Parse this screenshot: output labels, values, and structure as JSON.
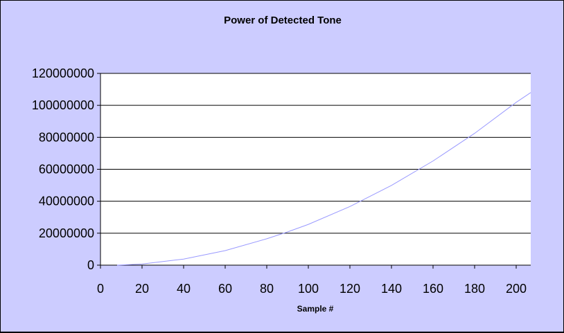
{
  "chart_data": {
    "type": "line",
    "title": "Power of Detected Tone",
    "xlabel": "Sample #",
    "ylabel": "",
    "xlim": [
      0,
      207
    ],
    "ylim": [
      0,
      120000000
    ],
    "x_ticks": [
      0,
      20,
      40,
      60,
      80,
      100,
      120,
      140,
      160,
      180,
      200
    ],
    "y_ticks": [
      0,
      20000000,
      40000000,
      60000000,
      80000000,
      100000000,
      120000000
    ],
    "grid": {
      "horizontal": true,
      "vertical": false
    },
    "legend": "none",
    "series": [
      {
        "color": "#9999ff",
        "x": [
          8,
          20,
          40,
          60,
          80,
          90,
          100,
          120,
          140,
          160,
          180,
          200,
          207
        ],
        "y": [
          0,
          700000,
          3800000,
          9100000,
          16500000,
          20800000,
          25500000,
          36700000,
          49900000,
          65200000,
          82500000,
          101900000,
          108000000
        ]
      }
    ],
    "ripple_note": ""
  },
  "colors": {
    "chart_area": "#ccccff",
    "plot_area": "#ffffff",
    "line": "#9999ff",
    "grid": "#000000"
  }
}
